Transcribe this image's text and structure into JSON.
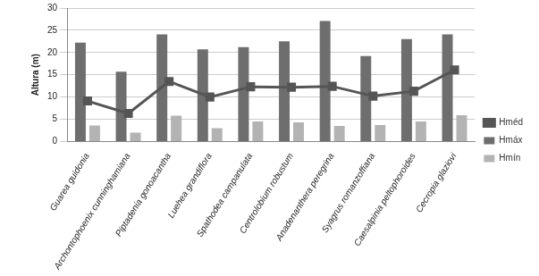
{
  "chart_data": {
    "type": "bar",
    "y_label": "Altura (m)",
    "categories": [
      "Guarea guidonia",
      "Archontophoenix cunninghamiana",
      "Piptadenia gonoacantha",
      "Luehea grandiflora",
      "Spathodea campanulata",
      "Centrolobium robustum",
      "Anadenanthera peregrina",
      "Syagrus romanzoffiana",
      "Caesalpinia peltophoroides",
      "Cecropia glaziovi"
    ],
    "series": [
      {
        "name": "Hmáx",
        "type": "bar",
        "color": "#6e6e6e",
        "values": [
          22.2,
          15.7,
          24.1,
          20.7,
          21.2,
          22.5,
          27.1,
          19.2,
          23.0,
          24.1
        ]
      },
      {
        "name": "Hmín",
        "type": "bar",
        "color": "#b3b3b3",
        "values": [
          3.6,
          2.0,
          5.8,
          3.0,
          4.5,
          4.3,
          3.5,
          3.7,
          4.5,
          5.9
        ]
      },
      {
        "name": "Hméd",
        "type": "line",
        "color": "#555555",
        "marker": "square",
        "values": [
          9.1,
          6.3,
          13.5,
          10.0,
          12.3,
          12.2,
          12.4,
          10.2,
          11.3,
          16.1
        ]
      }
    ],
    "ylim": [
      0,
      30
    ],
    "yticks": [
      0,
      5,
      10,
      15,
      20,
      25,
      30
    ],
    "grid": true,
    "legend": "right"
  }
}
